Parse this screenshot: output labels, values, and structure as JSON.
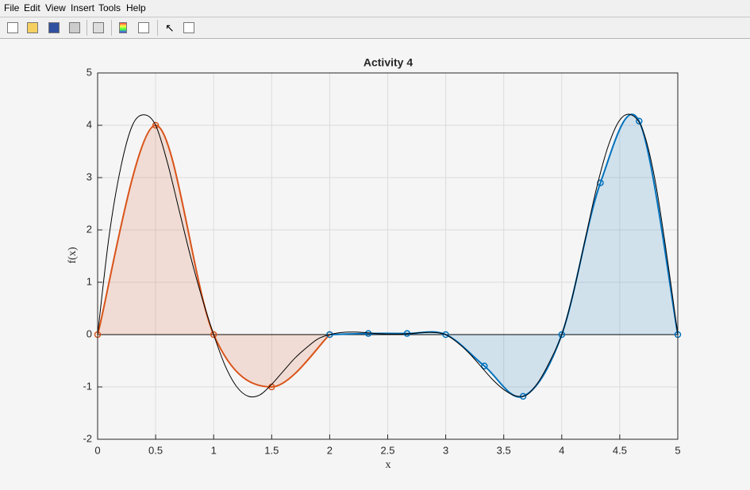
{
  "menu": [
    "File",
    "Edit",
    "View",
    "Insert",
    "Tools",
    "Help"
  ],
  "chart_data": {
    "type": "line",
    "title": "Activity 4",
    "xlabel": "x",
    "ylabel": "f(x)",
    "xlim": [
      0,
      5
    ],
    "ylim": [
      -2,
      5
    ],
    "xticks": [
      0,
      0.5,
      1,
      1.5,
      2,
      2.5,
      3,
      3.5,
      4,
      4.5,
      5
    ],
    "yticks": [
      -2,
      -1,
      0,
      1,
      2,
      3,
      4,
      5
    ],
    "grid": true,
    "series": [
      {
        "color": "#000000",
        "marker": "none",
        "fill": false,
        "x": [
          0,
          0.1,
          0.2,
          0.3,
          0.4,
          0.5,
          0.6,
          0.7,
          0.8,
          0.9,
          1,
          1.1,
          1.2,
          1.3,
          1.4,
          1.5,
          1.6,
          1.7,
          1.8,
          1.9,
          2,
          2.1,
          2.2,
          2.3,
          2.4,
          2.5,
          2.6,
          2.7,
          2.8,
          2.9,
          3,
          3.1,
          3.2,
          3.3,
          3.4,
          3.5,
          3.6,
          3.7,
          3.8,
          3.9,
          4,
          4.1,
          4.2,
          4.3,
          4.4,
          4.5,
          4.6,
          4.7,
          4.8,
          4.9,
          5
        ],
        "values": [
          0,
          1.9,
          3.2,
          4.0,
          4.2,
          4.0,
          3.3,
          2.4,
          1.5,
          0.7,
          0,
          -0.6,
          -1.0,
          -1.18,
          -1.15,
          -0.95,
          -0.7,
          -0.45,
          -0.25,
          -0.08,
          0,
          0.04,
          0.05,
          0.04,
          0.02,
          0.01,
          0.01,
          0.02,
          0.04,
          0.04,
          0,
          -0.15,
          -0.35,
          -0.6,
          -0.85,
          -1.05,
          -1.17,
          -1.15,
          -0.9,
          -0.5,
          0,
          0.8,
          1.8,
          2.8,
          3.6,
          4.1,
          4.2,
          3.9,
          3.0,
          1.6,
          0
        ]
      },
      {
        "color": "#d95319",
        "marker": "o",
        "fill": true,
        "x": [
          0,
          0.5,
          1,
          1.5,
          2
        ],
        "values": [
          0,
          4,
          0,
          -1,
          0
        ]
      },
      {
        "color": "#0072bd",
        "marker": "o",
        "fill": true,
        "x": [
          2,
          2.333,
          2.667,
          3,
          3.333,
          3.667,
          4,
          4.333,
          4.667,
          5
        ],
        "values": [
          0,
          0.02,
          0.02,
          0,
          -0.6,
          -1.18,
          0,
          2.9,
          4.08,
          0
        ]
      }
    ]
  }
}
